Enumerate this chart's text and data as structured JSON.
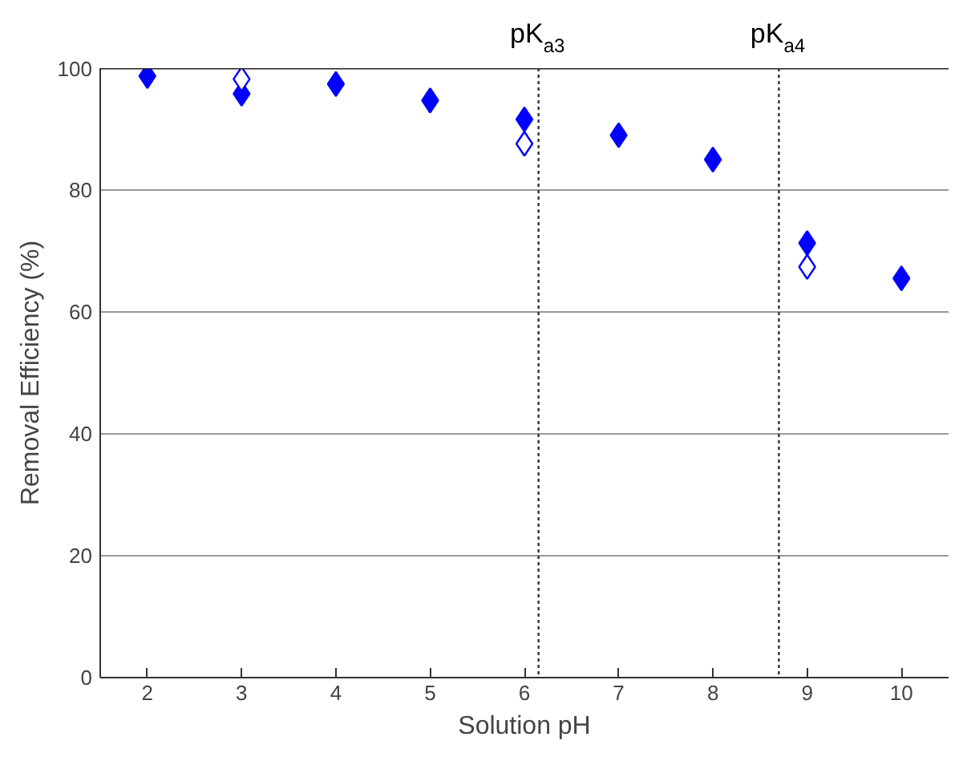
{
  "chart_data": {
    "type": "scatter",
    "xlabel": "Solution pH",
    "ylabel": "Removal Efficiency (%)",
    "xlim": [
      1.5,
      10.5
    ],
    "xticks": [
      2,
      3,
      4,
      5,
      6,
      7,
      8,
      9,
      10
    ],
    "ylim": [
      0,
      100
    ],
    "yticks": [
      0,
      20,
      40,
      60,
      80,
      100
    ],
    "grid": "y",
    "marker": "diamond",
    "series": [
      {
        "color": "#0000ff",
        "x": [
          2,
          3,
          4,
          5,
          6,
          7,
          8,
          9,
          10
        ],
        "values": [
          98.7,
          95.8,
          97.4,
          94.7,
          91.6,
          89,
          85,
          71.3,
          65.5
        ]
      },
      {
        "color": "#0000ff",
        "marker": "diamond_open",
        "x": [
          3,
          6,
          9
        ],
        "values": [
          98.2,
          87.6,
          67.4
        ]
      }
    ],
    "ref_lines": [
      {
        "axis": "x",
        "value": 6.15,
        "label": "pK$_{a3}$",
        "line_style": "dotted",
        "color": "#333333"
      },
      {
        "axis": "x",
        "value": 8.7,
        "label": "pK$_{a4}$",
        "line_style": "dotted",
        "color": "#333333"
      }
    ]
  }
}
